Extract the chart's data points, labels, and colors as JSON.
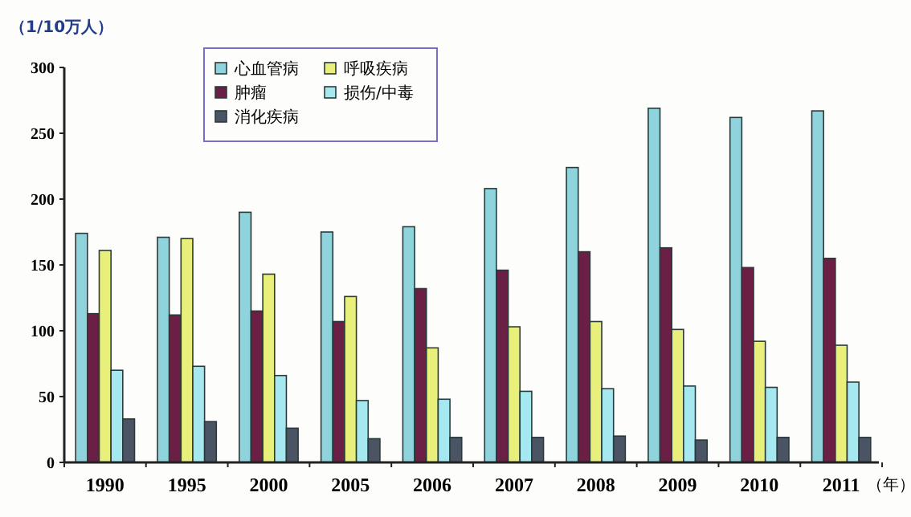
{
  "chart_data": {
    "type": "bar",
    "ylabel": "（1/10万人）",
    "xlabel": "（年）",
    "categories": [
      "1990",
      "1995",
      "2000",
      "2005",
      "2006",
      "2007",
      "2008",
      "2009",
      "2010",
      "2011"
    ],
    "series": [
      {
        "name": "心血管病",
        "color": "#8fd3dc",
        "values": [
          174,
          171,
          190,
          175,
          179,
          208,
          224,
          269,
          262,
          267
        ]
      },
      {
        "name": "肿瘤",
        "color": "#6b1f45",
        "values": [
          113,
          112,
          115,
          107,
          132,
          146,
          160,
          163,
          148,
          155
        ]
      },
      {
        "name": "呼吸疾病",
        "color": "#e8ef7a",
        "values": [
          161,
          170,
          143,
          126,
          87,
          103,
          107,
          101,
          92,
          89
        ]
      },
      {
        "name": "损伤/中毒",
        "color": "#a6e8f0",
        "values": [
          70,
          73,
          66,
          47,
          48,
          54,
          56,
          58,
          57,
          61
        ]
      },
      {
        "name": "消化疾病",
        "color": "#4a5464",
        "values": [
          33,
          31,
          26,
          18,
          19,
          19,
          20,
          17,
          19,
          19
        ]
      }
    ],
    "ylim": [
      0,
      300
    ],
    "yticks": [
      0,
      50,
      100,
      150,
      200,
      250,
      300
    ],
    "grid": false,
    "legend": "top"
  }
}
